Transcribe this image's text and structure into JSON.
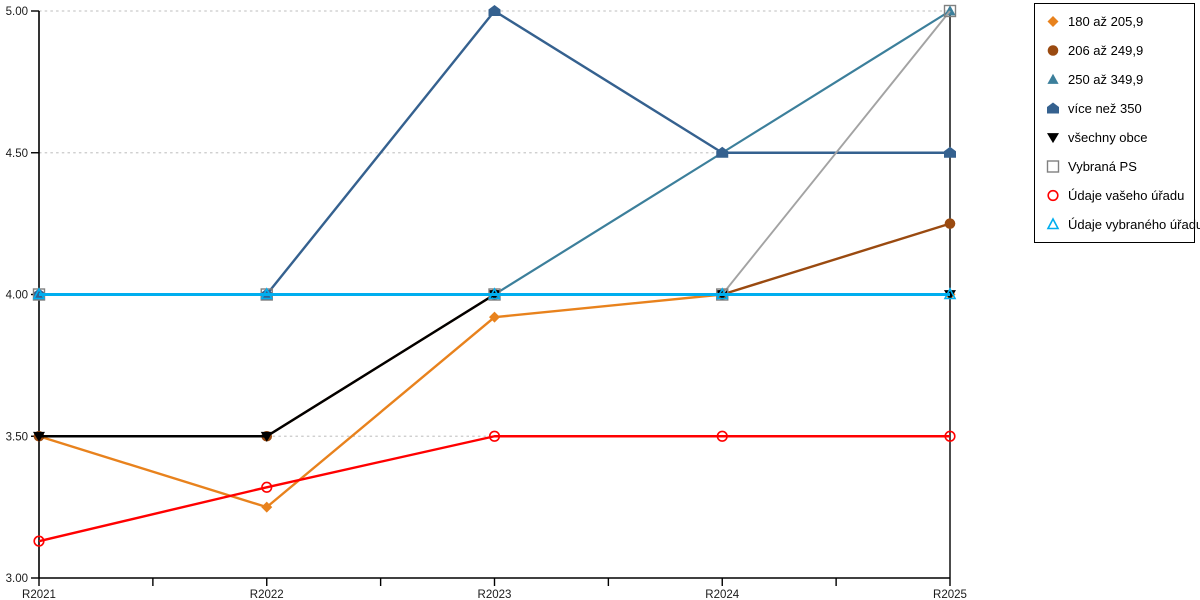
{
  "chart_data": {
    "type": "line",
    "title": "",
    "xlabel": "",
    "ylabel": "",
    "x": [
      "R2021",
      "R2022",
      "R2023",
      "R2024",
      "R2025"
    ],
    "ylim": [
      3.0,
      5.0
    ],
    "ytick_labels": [
      "3.00",
      "3.50",
      "4.00",
      "4.50",
      "5.00"
    ],
    "yticks": [
      3.0,
      3.5,
      4.0,
      4.5,
      5.0
    ],
    "grid": "horizontal-dotted",
    "legend_position": "right-box",
    "annotations": {
      "vertical_marker_at": "R2025"
    },
    "colors": {
      "grid": "#C9C9C9",
      "axis": "#000000",
      "background": "#FFFFFF"
    },
    "series": [
      {
        "name": "180 až 205,9",
        "marker": "diamond",
        "color": "#E8821D",
        "line_width": 2.4,
        "values": [
          3.5,
          3.25,
          3.92,
          4.0,
          4.0
        ]
      },
      {
        "name": "206 až 249,9",
        "marker": "circle",
        "color": "#9A4A10",
        "line_width": 2.4,
        "values": [
          3.5,
          3.5,
          4.0,
          4.0,
          4.25
        ]
      },
      {
        "name": "250 až 349,9",
        "marker": "triangle-up",
        "color": "#3C7F9B",
        "line_width": 2.2,
        "values": [
          4.0,
          4.0,
          4.0,
          4.5,
          5.0
        ]
      },
      {
        "name": "více než 350",
        "marker": "pentagon",
        "color": "#35618F",
        "line_width": 2.4,
        "values": [
          4.0,
          4.0,
          5.0,
          4.5,
          4.5
        ]
      },
      {
        "name": "všechny obce",
        "marker": "triangle-down",
        "color": "#000000",
        "line_width": 2.4,
        "values": [
          3.5,
          3.5,
          4.0,
          4.0,
          4.0
        ]
      },
      {
        "name": "Vybraná PS",
        "marker": "square-open",
        "color": "#808080",
        "line_color": "#A3A3A3",
        "line_width": 1.9,
        "values": [
          4.0,
          4.0,
          4.0,
          4.0,
          5.0
        ]
      },
      {
        "name": "Údaje vašeho úřadu",
        "marker": "circle-open",
        "color": "#FF0000",
        "line_width": 2.4,
        "values": [
          3.13,
          3.32,
          3.5,
          3.5,
          3.5
        ]
      },
      {
        "name": "Údaje vybraného úřadu",
        "marker": "triangle-open",
        "color": "#00AEEF",
        "line_width": 3.0,
        "values": [
          4.0,
          4.0,
          4.0,
          4.0,
          4.0
        ]
      }
    ]
  }
}
